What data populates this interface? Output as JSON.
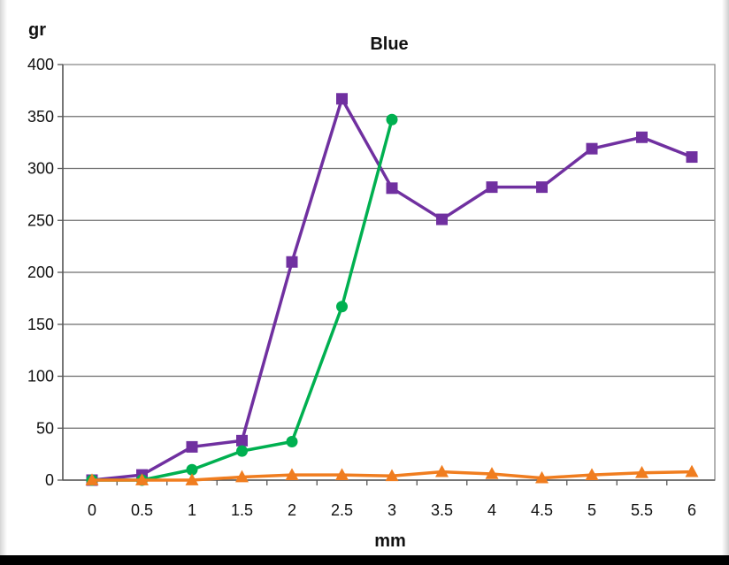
{
  "chart_data": {
    "type": "line",
    "title": "Blue",
    "ylabel": "gr",
    "xlabel": "mm",
    "x": [
      0,
      0.5,
      1,
      1.5,
      2,
      2.5,
      3,
      3.5,
      4,
      4.5,
      5,
      5.5,
      6
    ],
    "x_tick_labels": [
      "0",
      "0.5",
      "1",
      "1.5",
      "2",
      "2.5",
      "3",
      "3.5",
      "4",
      "4.5",
      "5",
      "5.5",
      "6"
    ],
    "ylim": [
      0,
      400
    ],
    "y_ticks": [
      0,
      50,
      100,
      150,
      200,
      250,
      300,
      350,
      400
    ],
    "grid": "horizontal",
    "legend": "none",
    "series": [
      {
        "marker": "square",
        "color": "#7030a0",
        "points": [
          [
            0,
            0
          ],
          [
            0.5,
            5
          ],
          [
            1,
            32
          ],
          [
            1.5,
            38
          ],
          [
            2,
            210
          ],
          [
            2.5,
            367
          ],
          [
            3,
            281
          ],
          [
            3.5,
            251
          ],
          [
            4,
            282
          ],
          [
            4.5,
            282
          ],
          [
            5,
            319
          ],
          [
            5.5,
            330
          ],
          [
            6,
            311
          ]
        ]
      },
      {
        "marker": "circle",
        "color": "#00b050",
        "points": [
          [
            0,
            0
          ],
          [
            0.5,
            0
          ],
          [
            1,
            10
          ],
          [
            1.5,
            28
          ],
          [
            2,
            37
          ],
          [
            2.5,
            167
          ],
          [
            3,
            347
          ]
        ]
      },
      {
        "marker": "triangle",
        "color": "#f07d1f",
        "points": [
          [
            0,
            0
          ],
          [
            0.5,
            0
          ],
          [
            1,
            0
          ],
          [
            1.5,
            3
          ],
          [
            2,
            5
          ],
          [
            2.5,
            5
          ],
          [
            3,
            4
          ],
          [
            3.5,
            8
          ],
          [
            4,
            6
          ],
          [
            4.5,
            2
          ],
          [
            5,
            5
          ],
          [
            5.5,
            7
          ],
          [
            6,
            8
          ]
        ]
      }
    ]
  }
}
